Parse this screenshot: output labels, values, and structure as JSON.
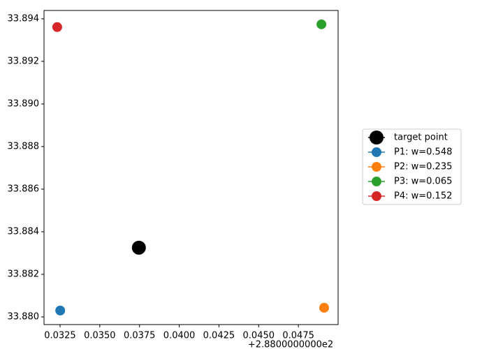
{
  "chart_data": {
    "type": "scatter",
    "x_offset_label": "+2.8800000000e2",
    "xlim": [
      0.03149,
      0.05
    ],
    "ylim": [
      33.87964,
      33.89439
    ],
    "xticks": [
      0.0325,
      {
        "value": 0.035,
        "label": "0.0350"
      },
      0.0375,
      {
        "value": 0.04,
        "label": "0.0400"
      },
      0.0425,
      {
        "value": 0.045,
        "label": "0.0450"
      },
      0.0475
    ],
    "yticks": [
      {
        "value": 33.88,
        "label": "33.880"
      },
      33.882,
      33.884,
      33.886,
      33.888,
      {
        "value": 33.89,
        "label": "33.890"
      },
      33.892,
      33.894
    ],
    "legend": "center right",
    "series": [
      {
        "name": "target point",
        "color": "#000000",
        "x": [
          0.03746
        ],
        "y": [
          33.88325
        ]
      },
      {
        "name": "P1: w=0.548",
        "color": "#1f77b4",
        "x": [
          0.03251
        ],
        "y": [
          33.8803
        ]
      },
      {
        "name": "P2: w=0.235",
        "color": "#ff7f0e",
        "x": [
          0.04912
        ],
        "y": [
          33.88043
        ]
      },
      {
        "name": "P3: w=0.065",
        "color": "#2ca02c",
        "x": [
          0.04895
        ],
        "y": [
          33.89374
        ]
      },
      {
        "name": "P4: w=0.152",
        "color": "#d62728",
        "x": [
          0.03232
        ],
        "y": [
          33.89361
        ]
      }
    ]
  }
}
